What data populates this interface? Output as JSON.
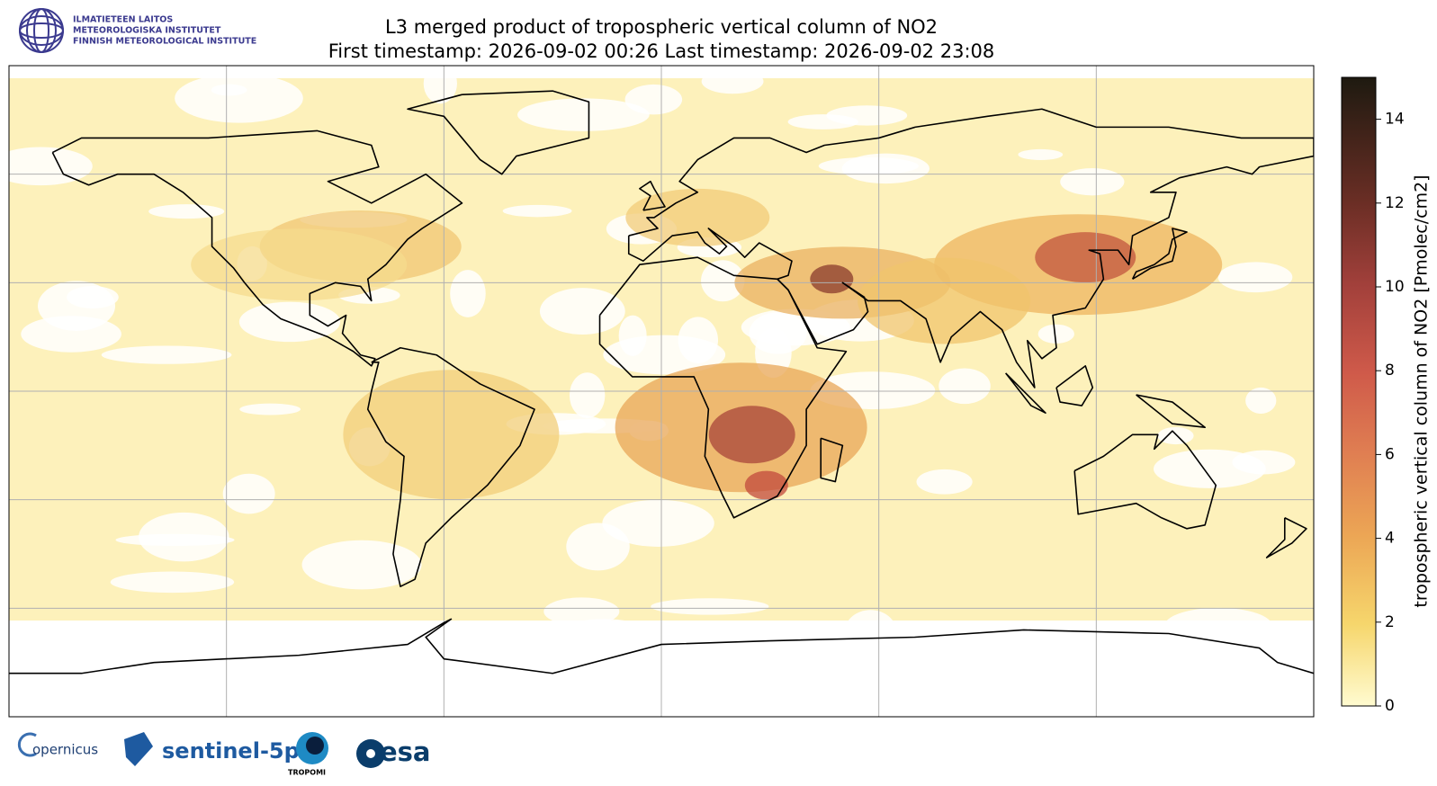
{
  "header": {
    "institute": [
      "ILMATIETEEN LAITOS",
      "METEOROLOGISKA INSTITUTET",
      "FINNISH METEOROLOGICAL INSTITUTE"
    ],
    "title": "L3 merged product of tropospheric vertical column of NO2",
    "subtitle": "First timestamp: 2026-09-02 00:26   Last timestamp: 2026-09-02 23:08"
  },
  "colorbar": {
    "label": "tropospheric vertical column of NO2 [Pmolec/cm2]",
    "lim": [
      0,
      15
    ],
    "ticks": [
      0,
      2,
      4,
      6,
      8,
      10,
      12,
      14
    ]
  },
  "logos": {
    "copernicus": "opernicus",
    "sentinel": "sentinel-5p",
    "tropomi": "TROPOMI",
    "esa": "esa"
  }
}
